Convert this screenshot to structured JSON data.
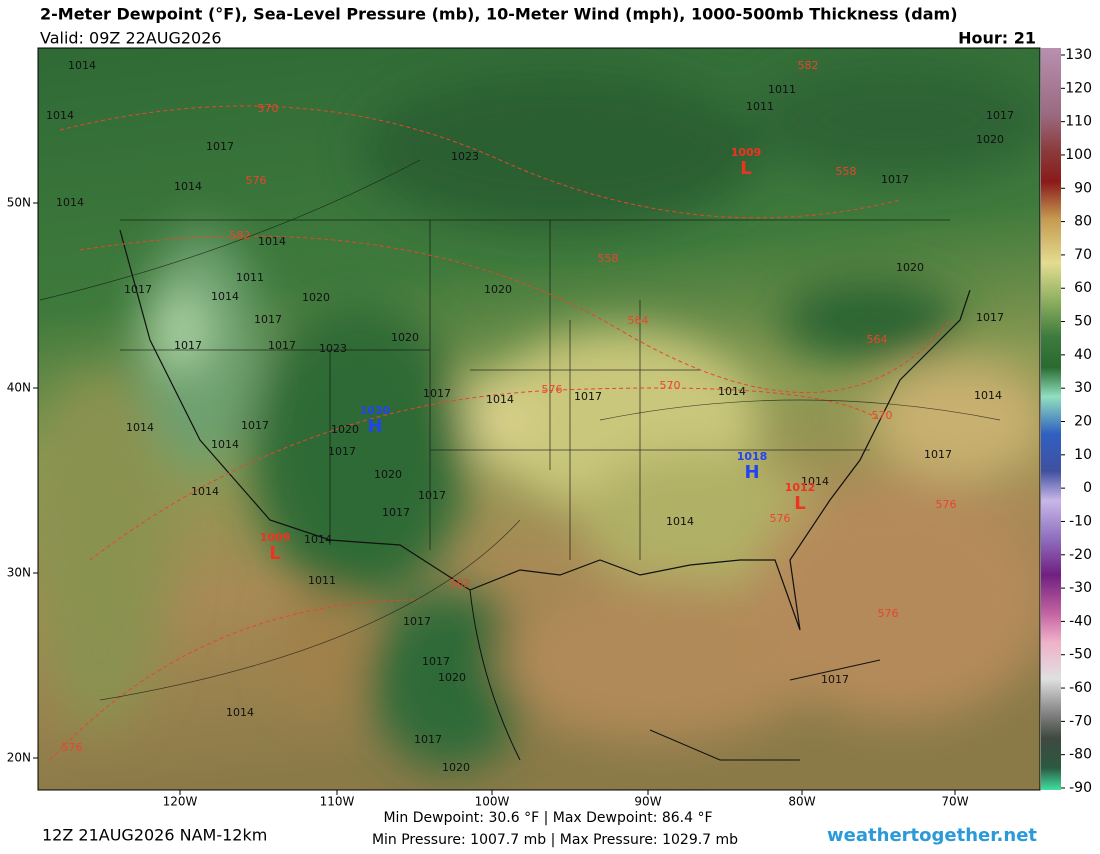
{
  "header": {
    "title": "2-Meter Dewpoint (°F), Sea-Level Pressure (mb), 10-Meter Wind (mph), 1000-500mb Thickness (dam)",
    "valid": "Valid: 09Z 22AUG2026",
    "hour": "Hour: 21"
  },
  "colorbar": {
    "ticks": [
      130,
      120,
      110,
      100,
      90,
      80,
      70,
      60,
      50,
      40,
      30,
      20,
      10,
      0,
      -10,
      -20,
      -30,
      -40,
      -50,
      -60,
      -70,
      -80,
      -90
    ]
  },
  "axes": {
    "x_labels": [
      "120W",
      "110W",
      "100W",
      "90W",
      "80W",
      "70W"
    ],
    "y_labels": [
      "50N",
      "40N",
      "30N",
      "20N"
    ]
  },
  "map_labels": {
    "isobars": [
      "1014",
      "1014",
      "1017",
      "1023",
      "1014",
      "1014",
      "1014",
      "1011",
      "1014",
      "1017",
      "1020",
      "1020",
      "1017",
      "1017",
      "1017",
      "1023",
      "1020",
      "1017",
      "1014",
      "1017",
      "1014",
      "1011",
      "1011",
      "1020",
      "1017",
      "1017",
      "1020",
      "1017",
      "1014",
      "1017",
      "1014",
      "1014",
      "1017",
      "1020",
      "1017",
      "1014",
      "1017",
      "1020",
      "1017",
      "1014",
      "1011",
      "1017",
      "1017",
      "1020",
      "1017",
      "1020",
      "1014",
      "1017",
      "1014",
      "1014"
    ],
    "thickness": [
      "570",
      "576",
      "582",
      "558",
      "564",
      "576",
      "570",
      "558",
      "564",
      "570",
      "576",
      "576",
      "576",
      "582",
      "576",
      "582"
    ],
    "centers": [
      {
        "type": "L",
        "value": "1009"
      },
      {
        "type": "H",
        "value": "1030"
      },
      {
        "type": "H",
        "value": "1018"
      },
      {
        "type": "L",
        "value": "1012"
      },
      {
        "type": "L",
        "value": "1009"
      }
    ]
  },
  "footer": {
    "run": "12Z 21AUG2026 NAM-12km",
    "dewpoint": "Min Dewpoint:  30.6 °F | Max Dewpoint:  86.4 °F",
    "pressure": "Min Pressure: 1007.7 mb | Max Pressure: 1029.7 mb",
    "site": "weathertogether.net"
  }
}
